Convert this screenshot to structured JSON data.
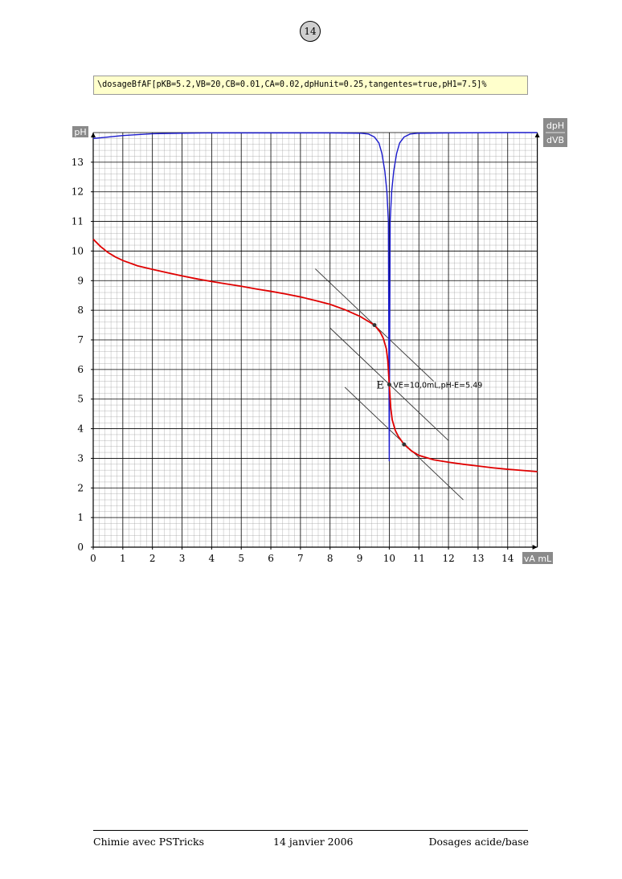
{
  "page": {
    "number": "14",
    "code": "\\dosageBfAF[pKB=5.2,VB=20,CB=0.01,CA=0.02,dpHunit=0.25,tangentes=true,pH1=7.5]%"
  },
  "footer": {
    "left": "Chimie avec PSTricks",
    "center": "14 janvier 2006",
    "right": "Dosages acide/base"
  },
  "chart_data": {
    "type": "line",
    "xlim": [
      0,
      15
    ],
    "ylim": [
      0,
      14
    ],
    "x_ticks": [
      "0",
      "1",
      "2",
      "3",
      "4",
      "5",
      "6",
      "7",
      "8",
      "9",
      "10",
      "11",
      "12",
      "13",
      "14"
    ],
    "y_ticks": [
      "0",
      "1",
      "2",
      "3",
      "4",
      "5",
      "6",
      "7",
      "8",
      "9",
      "10",
      "11",
      "12",
      "13"
    ],
    "ylabel": "pH",
    "xlabel": "vA mL",
    "y2label": {
      "numerator": "dpH",
      "denominator": "dVB"
    },
    "grid": true,
    "colors": {
      "ph_curve": "#e00000",
      "derivative": "#1a1acc",
      "tangent": "#333333",
      "grid_major": "#000000",
      "grid_minor": "#999999"
    },
    "series": [
      {
        "id": "ph",
        "points": [
          [
            0,
            10.4
          ],
          [
            0.25,
            10.15
          ],
          [
            0.5,
            9.95
          ],
          [
            0.75,
            9.8
          ],
          [
            1,
            9.68
          ],
          [
            1.5,
            9.5
          ],
          [
            2,
            9.38
          ],
          [
            2.5,
            9.27
          ],
          [
            3,
            9.16
          ],
          [
            3.5,
            9.06
          ],
          [
            4,
            8.97
          ],
          [
            4.5,
            8.89
          ],
          [
            5,
            8.81
          ],
          [
            5.5,
            8.72
          ],
          [
            6,
            8.64
          ],
          [
            6.5,
            8.55
          ],
          [
            7,
            8.45
          ],
          [
            7.5,
            8.33
          ],
          [
            8,
            8.2
          ],
          [
            8.5,
            8.02
          ],
          [
            9,
            7.8
          ],
          [
            9.5,
            7.5
          ],
          [
            9.7,
            7.25
          ],
          [
            9.8,
            7.05
          ],
          [
            9.9,
            6.7
          ],
          [
            9.95,
            6.3
          ],
          [
            10,
            5.49
          ],
          [
            10.05,
            4.7
          ],
          [
            10.1,
            4.3
          ],
          [
            10.2,
            3.95
          ],
          [
            10.3,
            3.75
          ],
          [
            10.5,
            3.47
          ],
          [
            10.75,
            3.25
          ],
          [
            11,
            3.1
          ],
          [
            11.5,
            2.95
          ],
          [
            12,
            2.87
          ],
          [
            12.5,
            2.8
          ],
          [
            13,
            2.74
          ],
          [
            13.5,
            2.68
          ],
          [
            14,
            2.63
          ],
          [
            14.5,
            2.59
          ],
          [
            15,
            2.55
          ]
        ]
      },
      {
        "id": "dpH/dVB",
        "points": [
          [
            0,
            13.8
          ],
          [
            0.5,
            13.85
          ],
          [
            1,
            13.9
          ],
          [
            2,
            13.96
          ],
          [
            3,
            13.98
          ],
          [
            4,
            13.99
          ],
          [
            6,
            13.99
          ],
          [
            8,
            13.99
          ],
          [
            9,
            13.98
          ],
          [
            9.3,
            13.95
          ],
          [
            9.5,
            13.85
          ],
          [
            9.65,
            13.65
          ],
          [
            9.75,
            13.3
          ],
          [
            9.85,
            12.7
          ],
          [
            9.92,
            12.0
          ],
          [
            9.97,
            11.0
          ],
          [
            10,
            2.9
          ],
          [
            10.03,
            11.0
          ],
          [
            10.08,
            12.0
          ],
          [
            10.15,
            12.7
          ],
          [
            10.25,
            13.3
          ],
          [
            10.35,
            13.65
          ],
          [
            10.5,
            13.85
          ],
          [
            10.7,
            13.95
          ],
          [
            11,
            13.98
          ],
          [
            12,
            13.99
          ],
          [
            14,
            14.0
          ],
          [
            15,
            14.0
          ]
        ]
      }
    ],
    "tangents": [
      {
        "from": [
          7.5,
          9.4
        ],
        "to": [
          11.5,
          5.6
        ]
      },
      {
        "from": [
          8,
          7.4
        ],
        "to": [
          12,
          3.6
        ]
      },
      {
        "from": [
          8.5,
          5.4
        ],
        "to": [
          12.5,
          1.6
        ]
      }
    ],
    "points": [
      {
        "x": 9.5,
        "y": 7.5
      },
      {
        "x": 10,
        "y": 5.49
      },
      {
        "x": 10.5,
        "y": 3.47
      }
    ],
    "equivalence": {
      "x": 10,
      "y": 5.49,
      "letter": "E",
      "label": "VE=10,0mL,pH-E=5.49"
    }
  }
}
